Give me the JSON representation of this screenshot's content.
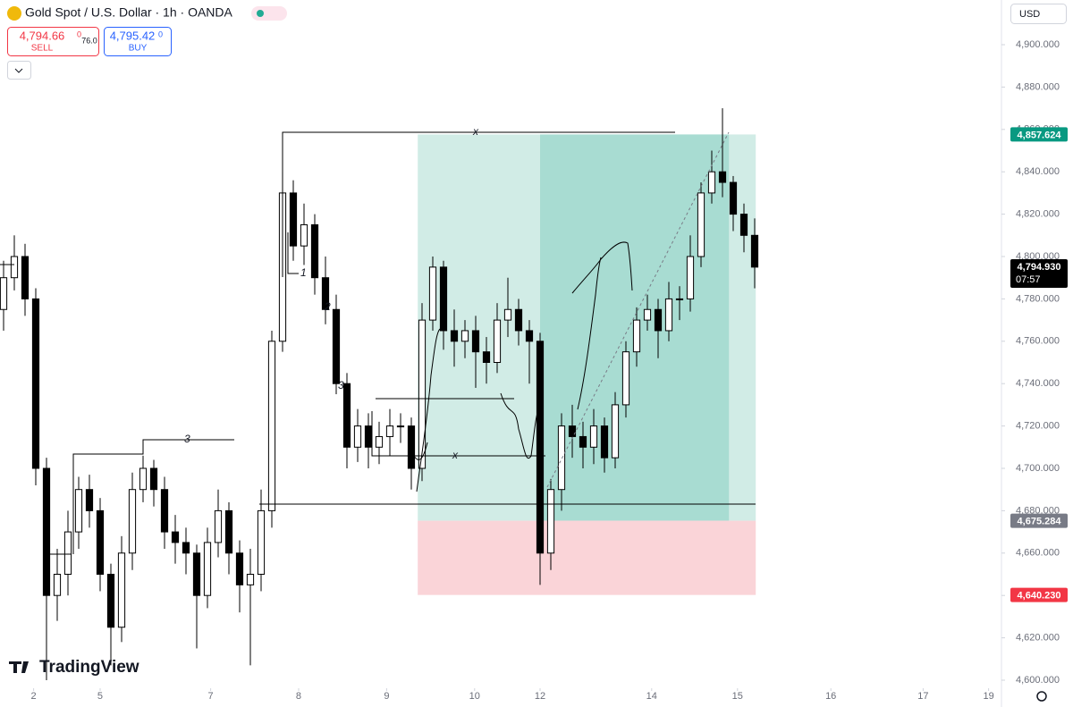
{
  "header": {
    "title": "Gold Spot / U.S. Dollar · 1h · OANDA",
    "sell_price": "4,794.66",
    "sell_sup": "0",
    "sell_label": "SELL",
    "spread": "76.0",
    "buy_price": "4,795.42",
    "buy_sup": "0",
    "buy_label": "BUY",
    "currency": "USD",
    "brand": "TradingView"
  },
  "chart_data": {
    "type": "candlestick",
    "open": [
      4775,
      4790,
      4800,
      4780,
      4700,
      4640,
      4650,
      4670,
      4690,
      4680,
      4650,
      4625,
      4660,
      4690,
      4700,
      4690,
      4670,
      4665,
      4660,
      4640,
      4665,
      4680,
      4660,
      4645,
      4650,
      4680,
      4760,
      4830,
      4805,
      4815,
      4790,
      4775,
      4740,
      4710,
      4720,
      4710,
      4715,
      4720,
      4720,
      4700,
      4770,
      4795,
      4765,
      4760,
      4765,
      4755,
      4750,
      4770,
      4775,
      4765,
      4760,
      4660,
      4690,
      4720,
      4715,
      4710,
      4720,
      4705,
      4730,
      4755,
      4770,
      4775,
      4765,
      4780,
      4780,
      4800,
      4830,
      4840,
      4835,
      4820,
      4810
    ],
    "high": [
      4798,
      4810,
      4806,
      4785,
      4705,
      4662,
      4680,
      4696,
      4697,
      4686,
      4655,
      4668,
      4698,
      4706,
      4704,
      4696,
      4678,
      4672,
      4664,
      4672,
      4690,
      4684,
      4666,
      4662,
      4690,
      4765,
      4840,
      4836,
      4825,
      4820,
      4800,
      4782,
      4745,
      4728,
      4726,
      4722,
      4728,
      4726,
      4724,
      4778,
      4800,
      4798,
      4775,
      4770,
      4772,
      4762,
      4778,
      4790,
      4780,
      4770,
      4764,
      4695,
      4726,
      4730,
      4722,
      4728,
      4724,
      4736,
      4760,
      4776,
      4782,
      4780,
      4788,
      4786,
      4810,
      4835,
      4850,
      4870,
      4838,
      4825,
      4818
    ],
    "low": [
      4765,
      4784,
      4772,
      4692,
      4600,
      4628,
      4640,
      4662,
      4672,
      4642,
      4607,
      4618,
      4652,
      4684,
      4682,
      4662,
      4655,
      4650,
      4615,
      4634,
      4658,
      4650,
      4632,
      4607,
      4642,
      4672,
      4755,
      4798,
      4796,
      4782,
      4768,
      4735,
      4700,
      4703,
      4700,
      4702,
      4706,
      4712,
      4690,
      4694,
      4765,
      4756,
      4748,
      4752,
      4738,
      4740,
      4745,
      4762,
      4758,
      4740,
      4645,
      4652,
      4680,
      4705,
      4700,
      4702,
      4698,
      4700,
      4724,
      4748,
      4765,
      4752,
      4760,
      4770,
      4774,
      4795,
      4825,
      4828,
      4812,
      4802,
      4785
    ],
    "close": [
      4790,
      4800,
      4780,
      4700,
      4640,
      4650,
      4670,
      4690,
      4680,
      4650,
      4625,
      4660,
      4690,
      4700,
      4690,
      4670,
      4665,
      4660,
      4640,
      4665,
      4680,
      4660,
      4645,
      4650,
      4680,
      4760,
      4830,
      4805,
      4815,
      4790,
      4775,
      4740,
      4710,
      4720,
      4710,
      4715,
      4720,
      4720,
      4700,
      4770,
      4795,
      4765,
      4760,
      4765,
      4755,
      4750,
      4770,
      4775,
      4765,
      4760,
      4660,
      4690,
      4720,
      4715,
      4710,
      4720,
      4705,
      4730,
      4755,
      4770,
      4775,
      4765,
      4780,
      4780,
      4800,
      4830,
      4840,
      4835,
      4820,
      4810,
      4795
    ],
    "up_color": "#ffffff",
    "down_color": "#000000",
    "wick_color": "#000000",
    "xlim": [
      -0.333,
      93
    ],
    "ylim": [
      4596.2,
      4921.1
    ],
    "xticks": [
      {
        "value": 2.8,
        "label": "2"
      },
      {
        "value": 9,
        "label": "5"
      },
      {
        "value": 19.3,
        "label": "7"
      },
      {
        "value": 27.5,
        "label": "8"
      },
      {
        "value": 35.7,
        "label": "9"
      },
      {
        "value": 43.9,
        "label": "10"
      },
      {
        "value": 50,
        "label": "12"
      },
      {
        "value": 60.4,
        "label": "14"
      },
      {
        "value": 68.4,
        "label": "15"
      },
      {
        "value": 77.1,
        "label": "16"
      },
      {
        "value": 85.7,
        "label": "17"
      },
      {
        "value": 91.8,
        "label": "19"
      }
    ],
    "yticks": [
      {
        "value": 4600,
        "label": "4,600.000"
      },
      {
        "value": 4620,
        "label": "4,620.000"
      },
      {
        "value": 4640,
        "label": "4,640.000"
      },
      {
        "value": 4660,
        "label": "4,660.000"
      },
      {
        "value": 4680,
        "label": "4,680.000"
      },
      {
        "value": 4700,
        "label": "4,700.000"
      },
      {
        "value": 4720,
        "label": "4,720.000"
      },
      {
        "value": 4740,
        "label": "4,740.000"
      },
      {
        "value": 4760,
        "label": "4,760.000"
      },
      {
        "value": 4780,
        "label": "4,780.000"
      },
      {
        "value": 4800,
        "label": "4,800.000"
      },
      {
        "value": 4820,
        "label": "4,820.000"
      },
      {
        "value": 4840,
        "label": "4,840.000"
      },
      {
        "value": 4860,
        "label": "4,860.000"
      },
      {
        "value": 4880,
        "label": "4,880.000"
      },
      {
        "value": 4900,
        "label": "4,900.000"
      }
    ],
    "grid": false,
    "position": {
      "start": 38.6,
      "fill_start": 50,
      "fill_end": 67.6,
      "end": 70.1,
      "target": {
        "value": 4857.624,
        "label": "4,857.624"
      },
      "entry": {
        "value": 4675.284,
        "label": "4,675.284"
      },
      "stop": {
        "value": 4640.23,
        "label": "4,640.230"
      },
      "target_color": "#089981",
      "entry_color": "#787b86",
      "stop_color": "#f23645"
    },
    "last_price": {
      "value": 4794.93,
      "label": "4,794.930",
      "countdown": "07:57"
    },
    "annotations": [
      "1",
      "2",
      "3",
      "3",
      "x",
      "x"
    ]
  }
}
